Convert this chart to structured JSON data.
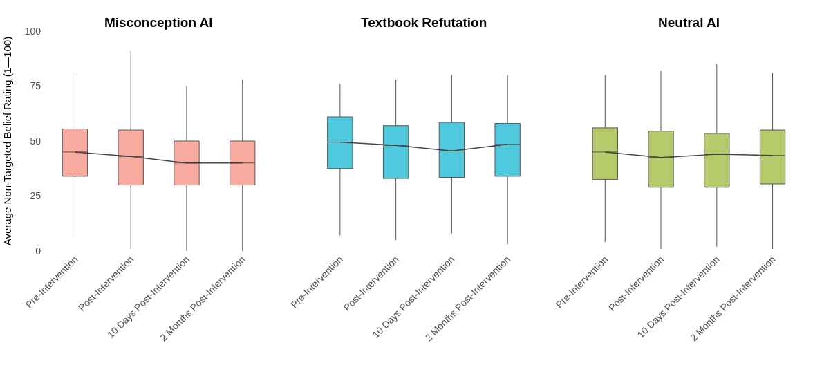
{
  "chart_data": [
    {
      "type": "box",
      "title": "Misconception AI",
      "ylabel": "Average Non-Targeted Belief Rating (1—100)",
      "categories": [
        "Pre-Intervention",
        "Post-Intervention",
        "10 Days Post-Intervention",
        "2 Months Post-Intervention"
      ],
      "color": "#f9aba0",
      "ylim": [
        0,
        100
      ],
      "yticks": [
        0,
        25,
        50,
        75,
        100
      ],
      "boxes": [
        {
          "low": 6,
          "q1": 34,
          "median": 45,
          "q3": 55.5,
          "high": 79.5
        },
        {
          "low": 1,
          "q1": 30,
          "median": 43,
          "q3": 55,
          "high": 91
        },
        {
          "low": 0,
          "q1": 30,
          "median": 40,
          "q3": 50,
          "high": 75
        },
        {
          "low": 0,
          "q1": 30,
          "median": 40,
          "q3": 50,
          "high": 78
        }
      ],
      "series": [
        {
          "type": "line",
          "color": "#444444",
          "values": [
            45,
            43,
            40,
            40
          ]
        }
      ]
    },
    {
      "type": "box",
      "title": "Textbook Refutation",
      "categories": [
        "Pre-Intervention",
        "Post-Intervention",
        "10 Days Post-Intervention",
        "2 Months Post-Intervention"
      ],
      "color": "#4fc9de",
      "ylim": [
        0,
        100
      ],
      "yticks": [
        0,
        25,
        50,
        75,
        100
      ],
      "tick_labels": "x",
      "boxes": [
        {
          "low": 7,
          "q1": 37.5,
          "median": 49.5,
          "q3": 61,
          "high": 76
        },
        {
          "low": 5,
          "q1": 33,
          "median": 48,
          "q3": 57,
          "high": 78
        },
        {
          "low": 8,
          "q1": 33.5,
          "median": 45.5,
          "q3": 58.5,
          "high": 80
        },
        {
          "low": 3,
          "q1": 34,
          "median": 48.5,
          "q3": 58,
          "high": 80
        }
      ],
      "series": [
        {
          "type": "line",
          "color": "#444444",
          "values": [
            49.5,
            48,
            45.5,
            48.5
          ]
        }
      ]
    },
    {
      "type": "box",
      "title": "Neutral AI",
      "categories": [
        "Pre-Intervention",
        "Post-Intervention",
        "10 Days Post-Intervention",
        "2 Months Post-Intervention"
      ],
      "color": "#b5cb6b",
      "ylim": [
        0,
        100
      ],
      "yticks": [
        0,
        25,
        50,
        75,
        100
      ],
      "tick_labels": "x",
      "boxes": [
        {
          "low": 4,
          "q1": 32.5,
          "median": 45,
          "q3": 56,
          "high": 80
        },
        {
          "low": 1,
          "q1": 29,
          "median": 42.5,
          "q3": 54.5,
          "high": 82
        },
        {
          "low": 2,
          "q1": 29,
          "median": 44,
          "q3": 53.5,
          "high": 85
        },
        {
          "low": 1,
          "q1": 30.5,
          "median": 43.5,
          "q3": 55,
          "high": 81
        }
      ],
      "series": [
        {
          "type": "line",
          "color": "#444444",
          "values": [
            45,
            42.5,
            44,
            43.5
          ]
        }
      ]
    }
  ]
}
